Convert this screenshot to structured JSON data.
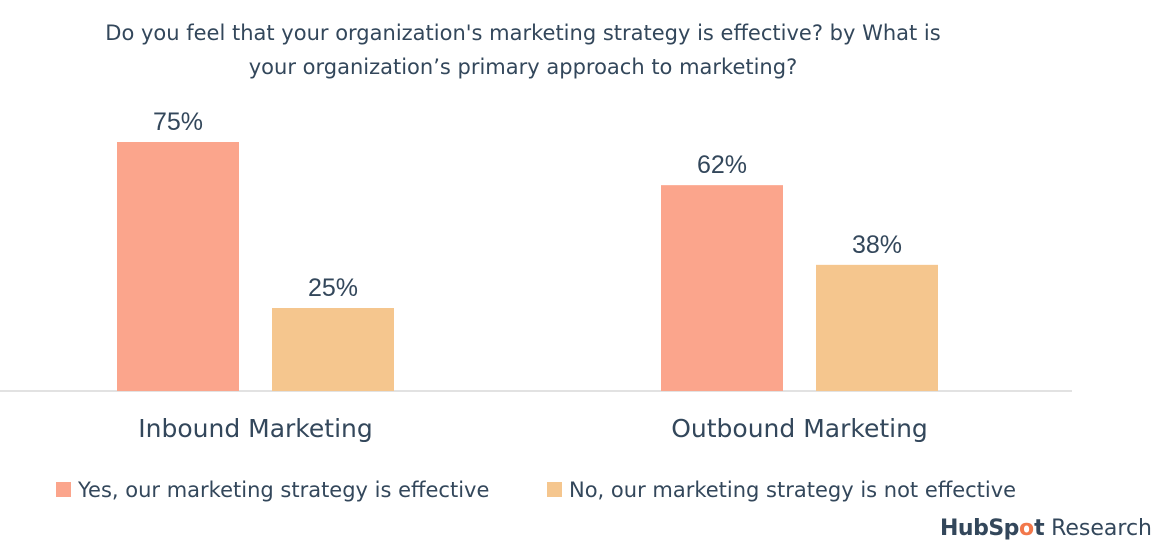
{
  "chart_data": {
    "type": "bar",
    "title": "Do you feel that your organization's marketing strategy is effective? by What is your organization’s primary approach to marketing?",
    "title_lines": [
      "Do you feel that your organization's marketing strategy is effective? by What is",
      "your organization’s primary approach to marketing?"
    ],
    "categories": [
      "Inbound Marketing",
      "Outbound Marketing"
    ],
    "series": [
      {
        "name": "Yes, our marketing strategy is effective",
        "values": [
          75,
          62
        ],
        "labels": [
          "75%",
          "62%"
        ],
        "color": "#fba58c"
      },
      {
        "name": "No, our marketing strategy is not effective",
        "values": [
          25,
          38
        ],
        "labels": [
          "25%",
          "38%"
        ],
        "color": "#f5c68e"
      }
    ],
    "ylim": [
      0,
      75
    ],
    "grid": false,
    "legend_position": "bottom"
  },
  "branding": {
    "hub": "HubSp",
    "o": "o",
    "t": "t",
    "research": " Research"
  },
  "colors": {
    "axis": "#d9d9d9",
    "text": "#33475b"
  }
}
